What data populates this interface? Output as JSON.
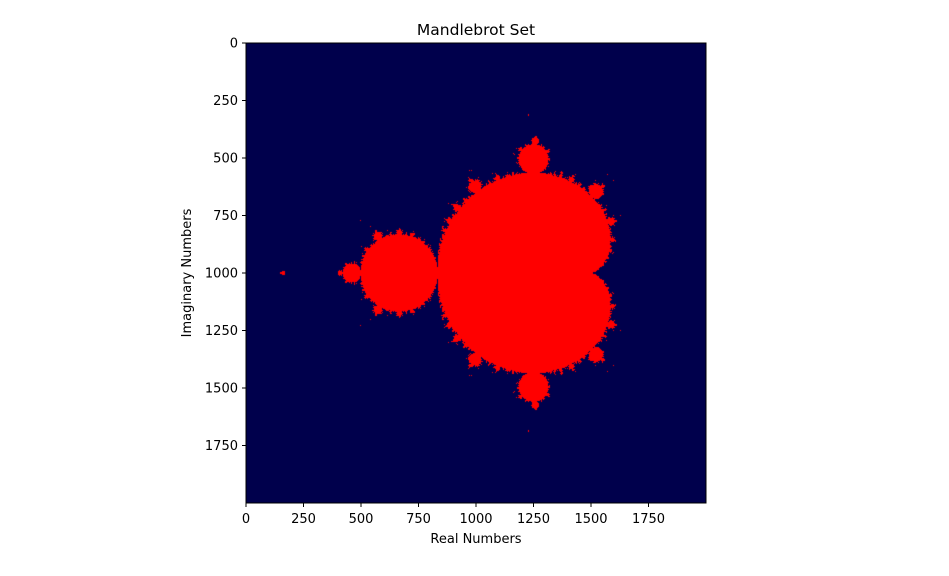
{
  "chart_data": {
    "type": "heatmap",
    "title": "Mandlebrot Set",
    "xlabel": "Real Numbers",
    "ylabel": "Imaginary Numbers",
    "xlim": [
      0,
      2000
    ],
    "ylim": [
      2000,
      0
    ],
    "y_axis_inverted": true,
    "grid": false,
    "legend": "none",
    "x_ticks": [
      {
        "value": 0,
        "label": "0"
      },
      {
        "value": 250,
        "label": "250"
      },
      {
        "value": 500,
        "label": "500"
      },
      {
        "value": 750,
        "label": "750"
      },
      {
        "value": 1000,
        "label": "1000"
      },
      {
        "value": 1250,
        "label": "1250"
      },
      {
        "value": 1500,
        "label": "1500"
      },
      {
        "value": 1750,
        "label": "1750"
      }
    ],
    "y_ticks": [
      {
        "value": 0,
        "label": "0"
      },
      {
        "value": 250,
        "label": "250"
      },
      {
        "value": 500,
        "label": "500"
      },
      {
        "value": 750,
        "label": "750"
      },
      {
        "value": 1000,
        "label": "1000"
      },
      {
        "value": 1250,
        "label": "1250"
      },
      {
        "value": 1500,
        "label": "1500"
      },
      {
        "value": 1750,
        "label": "1750"
      }
    ],
    "grid_size": [
      2000,
      2000
    ],
    "complex_domain": {
      "real": [
        -2.0,
        1.0
      ],
      "imag": [
        -1.5,
        1.5
      ]
    },
    "colors": {
      "inside_set": "#ff0000",
      "outside_set": "#00004c"
    }
  }
}
